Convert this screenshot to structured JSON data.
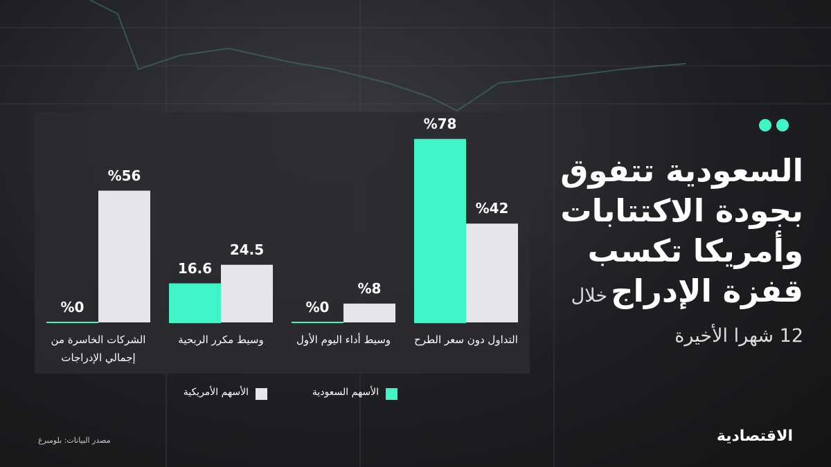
{
  "chart_data": {
    "type": "bar",
    "title": [
      "السعودية تتفوق",
      "بجودة الاكتتابات",
      "وأمريكا تكسب",
      "قفزة الإدراج"
    ],
    "subtitle": "خلال 12 شهرا الأخيرة",
    "categories": [
      "التداول دون سعر الطرح",
      "وسيط أداء اليوم الأول",
      "وسيط مكرر الربحية",
      "الشركات الخاسرة من إجمالي الإدراجات"
    ],
    "series": [
      {
        "name": "الأسهم السعودية",
        "color": "#3ff5c8",
        "values": [
          78,
          0,
          16.6,
          0
        ],
        "value_labels": [
          "%78",
          "%0",
          "16.6",
          "%0"
        ]
      },
      {
        "name": "الأسهم الأمريكية",
        "color": "#e6e6ea",
        "values": [
          42,
          8,
          24.5,
          56
        ],
        "value_labels": [
          "%42",
          "%8",
          "24.5",
          "%56"
        ]
      }
    ],
    "source": "مصدر البيانات: بلومبرغ",
    "logo": "الاقتصادية"
  }
}
